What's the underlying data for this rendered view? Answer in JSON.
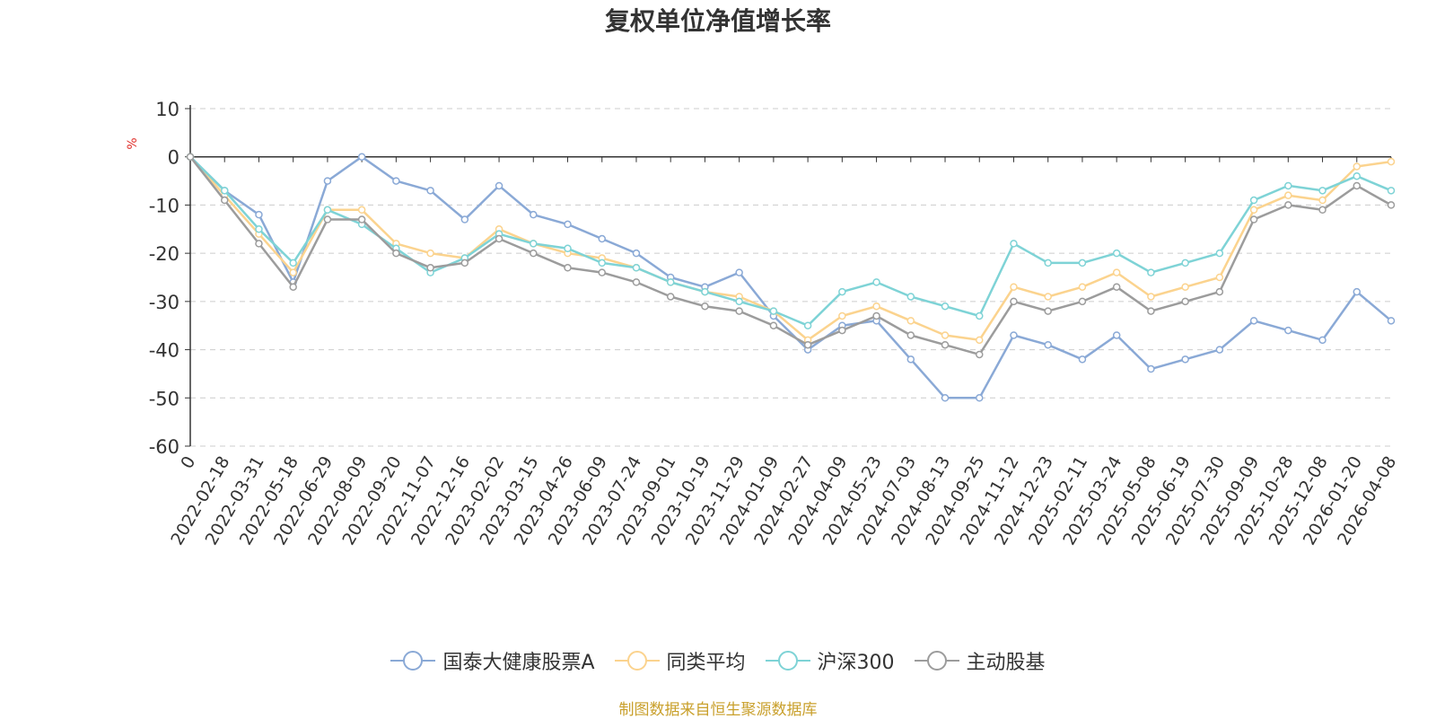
{
  "chart_data": {
    "type": "line",
    "title": "复权单位净值增长率",
    "ylabel": "%",
    "xlabel": "",
    "ylim": [
      -60,
      10
    ],
    "yticks": [
      10,
      0,
      -10,
      -20,
      -30,
      -40,
      -50,
      -60
    ],
    "xlabels": [
      "0",
      "2022-02-18",
      "2022-03-31",
      "2022-05-18",
      "2022-06-29",
      "2022-08-09",
      "2022-09-20",
      "2022-11-07",
      "2022-12-16",
      "2023-02-02",
      "2023-03-15",
      "2023-04-26",
      "2023-06-09",
      "2023-07-24",
      "2023-09-01",
      "2023-10-19",
      "2023-11-29",
      "2024-01-09",
      "2024-02-27",
      "2024-04-09",
      "2024-05-23",
      "2024-07-03",
      "2024-08-13",
      "2024-09-25",
      "2024-11-12",
      "2024-12-23",
      "2025-02-11",
      "2025-03-24",
      "2025-05-08",
      "2025-06-19",
      "2025-07-30",
      "2025-09-09",
      "2025-10-28",
      "2025-12-08",
      "2026-01-20",
      "2026-04-08"
    ],
    "series": [
      {
        "name": "国泰大健康股票A",
        "color": "#8aa9d6",
        "values": [
          0,
          -7,
          -12,
          -26,
          -5,
          0,
          -5,
          -7,
          -13,
          -6,
          -12,
          -14,
          -17,
          -20,
          -25,
          -27,
          -24,
          -33,
          -40,
          -35,
          -34,
          -42,
          -50,
          -50,
          -37,
          -39,
          -42,
          -37,
          -44,
          -42,
          -40,
          -34,
          -36,
          -38,
          -28,
          -34
        ]
      },
      {
        "name": "同类平均",
        "color": "#fbd38e",
        "values": [
          0,
          -8,
          -16,
          -24,
          -11,
          -11,
          -18,
          -20,
          -21,
          -15,
          -18,
          -20,
          -21,
          -23,
          -26,
          -28,
          -29,
          -32,
          -38,
          -33,
          -31,
          -34,
          -37,
          -38,
          -27,
          -29,
          -27,
          -24,
          -29,
          -27,
          -25,
          -11,
          -8,
          -9,
          -2,
          -1
        ]
      },
      {
        "name": "沪深300",
        "color": "#7ed3d6",
        "values": [
          0,
          -7,
          -15,
          -22,
          -11,
          -14,
          -19,
          -24,
          -21,
          -16,
          -18,
          -19,
          -22,
          -23,
          -26,
          -28,
          -30,
          -32,
          -35,
          -28,
          -26,
          -29,
          -31,
          -33,
          -18,
          -22,
          -22,
          -20,
          -24,
          -22,
          -20,
          -9,
          -6,
          -7,
          -4,
          -7
        ]
      },
      {
        "name": "主动股基",
        "color": "#9c9c9c",
        "values": [
          0,
          -9,
          -18,
          -27,
          -13,
          -13,
          -20,
          -23,
          -22,
          -17,
          -20,
          -23,
          -24,
          -26,
          -29,
          -31,
          -32,
          -35,
          -39,
          -36,
          -33,
          -37,
          -39,
          -41,
          -30,
          -32,
          -30,
          -27,
          -32,
          -30,
          -28,
          -13,
          -10,
          -11,
          -6,
          -10
        ]
      }
    ]
  },
  "legend": {
    "items": [
      "国泰大健康股票A",
      "同类平均",
      "沪深300",
      "主动股基"
    ]
  },
  "source_note": "制图数据来自恒生聚源数据库"
}
